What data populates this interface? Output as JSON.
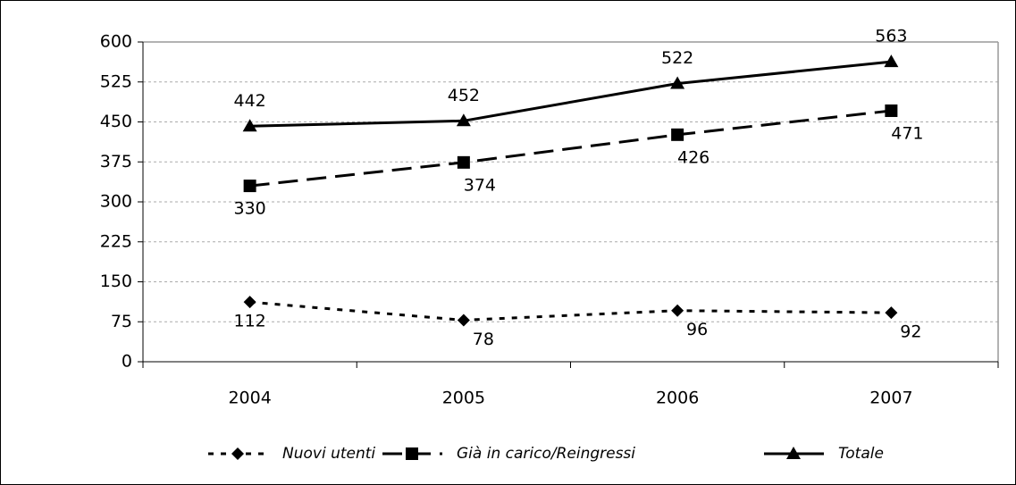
{
  "chart_data": {
    "type": "line",
    "categories": [
      "2004",
      "2005",
      "2006",
      "2007"
    ],
    "series": [
      {
        "name": "Nuovi utenti",
        "color": "#000000",
        "dash": "dotted",
        "marker": "diamond",
        "values": [
          112,
          78,
          96,
          92
        ]
      },
      {
        "name": "Già in carico/Reingressi",
        "color": "#000000",
        "dash": "dashed",
        "marker": "square",
        "values": [
          330,
          374,
          426,
          471
        ]
      },
      {
        "name": "Totale",
        "color": "#000000",
        "dash": "solid",
        "marker": "triangle",
        "values": [
          442,
          452,
          522,
          563
        ]
      }
    ],
    "ylim": [
      0,
      600
    ],
    "yticks": [
      0,
      75,
      150,
      225,
      300,
      375,
      450,
      525,
      600
    ],
    "grid": true,
    "legend": "bottom"
  }
}
